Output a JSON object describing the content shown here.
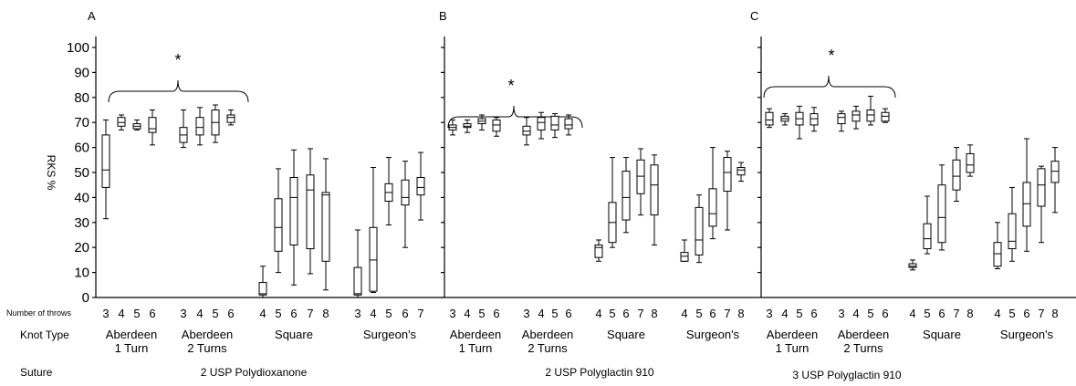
{
  "chart_data": {
    "type": "box",
    "ylabel": "RKS %",
    "ylim": [
      0,
      100
    ],
    "yticks": [
      "0",
      "10",
      "20",
      "30",
      "40",
      "50",
      "60",
      "70",
      "80",
      "90",
      "100"
    ],
    "row_labels": {
      "throws": "Number of throws",
      "knot_type": "Knot Type",
      "suture": "Suture"
    },
    "groups": [
      {
        "name": "Aberdeen",
        "name2": "1 Turn"
      },
      {
        "name": "Aberdeen",
        "name2": "2 Turns"
      },
      {
        "name": "Square",
        "name2": ""
      },
      {
        "name": "Surgeon's",
        "name2": ""
      }
    ],
    "panels": [
      {
        "letter": "A",
        "suture": "2 USP Polydioxanone",
        "significance": "*",
        "show_ytick_labels": true,
        "groups": [
          {
            "boxes": [
              {
                "throws": "3",
                "min": 31.5,
                "q1": 44,
                "median": 51,
                "q3": 65,
                "max": 71
              },
              {
                "throws": "4",
                "min": 67,
                "q1": 68.5,
                "median": 70,
                "q3": 72,
                "max": 73
              },
              {
                "throws": "5",
                "min": 67,
                "q1": 67.5,
                "median": 68.5,
                "q3": 69.5,
                "max": 71
              },
              {
                "throws": "6",
                "min": 61,
                "q1": 66,
                "median": 67.5,
                "q3": 72,
                "max": 75
              }
            ]
          },
          {
            "boxes": [
              {
                "throws": "3",
                "min": 60,
                "q1": 62,
                "median": 65,
                "q3": 68,
                "max": 75
              },
              {
                "throws": "4",
                "min": 61,
                "q1": 65,
                "median": 68,
                "q3": 72,
                "max": 76
              },
              {
                "throws": "5",
                "min": 62,
                "q1": 65,
                "median": 70,
                "q3": 75,
                "max": 77
              },
              {
                "throws": "6",
                "min": 69,
                "q1": 70,
                "median": 72,
                "q3": 73,
                "max": 75
              }
            ]
          },
          {
            "boxes": [
              {
                "throws": "4",
                "min": 0,
                "q1": 1,
                "median": 1.5,
                "q3": 6,
                "max": 12.5
              },
              {
                "throws": "5",
                "min": 10,
                "q1": 18.5,
                "median": 28,
                "q3": 39.5,
                "max": 51.5
              },
              {
                "throws": "6",
                "min": 5,
                "q1": 21,
                "median": 40,
                "q3": 48,
                "max": 59
              },
              {
                "throws": "7",
                "min": 9.5,
                "q1": 19.5,
                "median": 43,
                "q3": 49,
                "max": 59.5
              },
              {
                "throws": "8",
                "min": 3,
                "q1": 14.5,
                "median": 41,
                "q3": 42,
                "max": 55.5
              }
            ]
          },
          {
            "boxes": [
              {
                "throws": "3",
                "min": 0,
                "q1": 1,
                "median": 1.5,
                "q3": 12,
                "max": 27
              },
              {
                "throws": "4",
                "min": 2,
                "q1": 2.5,
                "median": 15,
                "q3": 28,
                "max": 52
              },
              {
                "throws": "5",
                "min": 29,
                "q1": 38.5,
                "median": 42,
                "q3": 45.5,
                "max": 56
              },
              {
                "throws": "6",
                "min": 20,
                "q1": 37,
                "median": 40,
                "q3": 47,
                "max": 54.5
              },
              {
                "throws": "7",
                "min": 31,
                "q1": 41,
                "median": 44,
                "q3": 48,
                "max": 58
              }
            ]
          }
        ]
      },
      {
        "letter": "B",
        "suture": "2 USP Polyglactin 910",
        "significance": "*",
        "show_ytick_labels": false,
        "groups": [
          {
            "boxes": [
              {
                "throws": "3",
                "min": 65,
                "q1": 67,
                "median": 68,
                "q3": 69,
                "max": 71
              },
              {
                "throws": "4",
                "min": 66,
                "q1": 68,
                "median": 68.5,
                "q3": 69.5,
                "max": 71
              },
              {
                "throws": "5",
                "min": 67,
                "q1": 69.5,
                "median": 70.5,
                "q3": 71.5,
                "max": 73
              },
              {
                "throws": "6",
                "min": 64.5,
                "q1": 66.5,
                "median": 69,
                "q3": 71,
                "max": 72
              }
            ]
          },
          {
            "boxes": [
              {
                "throws": "3",
                "min": 61,
                "q1": 65,
                "median": 66.5,
                "q3": 68.5,
                "max": 72
              },
              {
                "throws": "4",
                "min": 63.5,
                "q1": 67,
                "median": 70,
                "q3": 72,
                "max": 74
              },
              {
                "throws": "5",
                "min": 64,
                "q1": 67,
                "median": 69,
                "q3": 72.5,
                "max": 73.5
              },
              {
                "throws": "6",
                "min": 65,
                "q1": 67.5,
                "median": 69,
                "q3": 71.5,
                "max": 73
              }
            ]
          },
          {
            "boxes": [
              {
                "throws": "4",
                "min": 14.5,
                "q1": 16,
                "median": 20,
                "q3": 21,
                "max": 23
              },
              {
                "throws": "5",
                "min": 20,
                "q1": 22,
                "median": 30,
                "q3": 38,
                "max": 56
              },
              {
                "throws": "6",
                "min": 26,
                "q1": 31,
                "median": 40,
                "q3": 50.5,
                "max": 56
              },
              {
                "throws": "7",
                "min": 33,
                "q1": 41.5,
                "median": 48.5,
                "q3": 55,
                "max": 59.5
              },
              {
                "throws": "8",
                "min": 21,
                "q1": 33,
                "median": 45,
                "q3": 53,
                "max": 57
              }
            ]
          },
          {
            "boxes": [
              {
                "throws": "4",
                "min": 14.5,
                "q1": 14.5,
                "median": 16.5,
                "q3": 18,
                "max": 23
              },
              {
                "throws": "5",
                "min": 14,
                "q1": 17,
                "median": 23,
                "q3": 36,
                "max": 41
              },
              {
                "throws": "6",
                "min": 23.5,
                "q1": 28.5,
                "median": 33.5,
                "q3": 43.5,
                "max": 60
              },
              {
                "throws": "7",
                "min": 27,
                "q1": 42.5,
                "median": 50,
                "q3": 56,
                "max": 58.5
              },
              {
                "throws": "8",
                "min": 46.5,
                "q1": 49,
                "median": 51,
                "q3": 52,
                "max": 54
              }
            ]
          }
        ]
      },
      {
        "letter": "C",
        "suture": "3 USP Polyglactin 910",
        "significance": "*",
        "show_ytick_labels": false,
        "groups": [
          {
            "boxes": [
              {
                "throws": "3",
                "min": 68,
                "q1": 69,
                "median": 71,
                "q3": 74,
                "max": 75.5
              },
              {
                "throws": "4",
                "min": 69,
                "q1": 70.5,
                "median": 71.5,
                "q3": 72.5,
                "max": 73.5
              },
              {
                "throws": "5",
                "min": 63.5,
                "q1": 69,
                "median": 71.5,
                "q3": 74,
                "max": 76.5
              },
              {
                "throws": "6",
                "min": 66.5,
                "q1": 69,
                "median": 71.5,
                "q3": 73.5,
                "max": 76
              }
            ]
          },
          {
            "boxes": [
              {
                "throws": "3",
                "min": 66.5,
                "q1": 69.5,
                "median": 72,
                "q3": 73.5,
                "max": 74.5
              },
              {
                "throws": "4",
                "min": 67.5,
                "q1": 70.5,
                "median": 73,
                "q3": 74.5,
                "max": 76.5
              },
              {
                "throws": "5",
                "min": 69,
                "q1": 70.5,
                "median": 73,
                "q3": 75,
                "max": 80.5
              },
              {
                "throws": "6",
                "min": 70,
                "q1": 70.5,
                "median": 72.5,
                "q3": 74,
                "max": 75.5
              }
            ]
          },
          {
            "boxes": [
              {
                "throws": "4",
                "min": 11,
                "q1": 12,
                "median": 12.5,
                "q3": 13.5,
                "max": 15
              },
              {
                "throws": "5",
                "min": 17.5,
                "q1": 19.5,
                "median": 23.5,
                "q3": 29.5,
                "max": 40.5
              },
              {
                "throws": "6",
                "min": 19,
                "q1": 22,
                "median": 32,
                "q3": 45,
                "max": 53
              },
              {
                "throws": "7",
                "min": 38.5,
                "q1": 43,
                "median": 48.5,
                "q3": 55,
                "max": 60
              },
              {
                "throws": "8",
                "min": 48.5,
                "q1": 50,
                "median": 53,
                "q3": 57.5,
                "max": 61
              }
            ]
          },
          {
            "boxes": [
              {
                "throws": "4",
                "min": 11.5,
                "q1": 12.5,
                "median": 17.5,
                "q3": 22,
                "max": 30
              },
              {
                "throws": "5",
                "min": 14.5,
                "q1": 19.5,
                "median": 22.5,
                "q3": 33.5,
                "max": 44
              },
              {
                "throws": "6",
                "min": 18.5,
                "q1": 28.5,
                "median": 37.5,
                "q3": 46,
                "max": 63.5
              },
              {
                "throws": "7",
                "min": 22,
                "q1": 36.5,
                "median": 45,
                "q3": 51.5,
                "max": 52.5
              },
              {
                "throws": "8",
                "min": 34,
                "q1": 46,
                "median": 50.5,
                "q3": 54.5,
                "max": 60
              }
            ]
          }
        ]
      }
    ]
  }
}
